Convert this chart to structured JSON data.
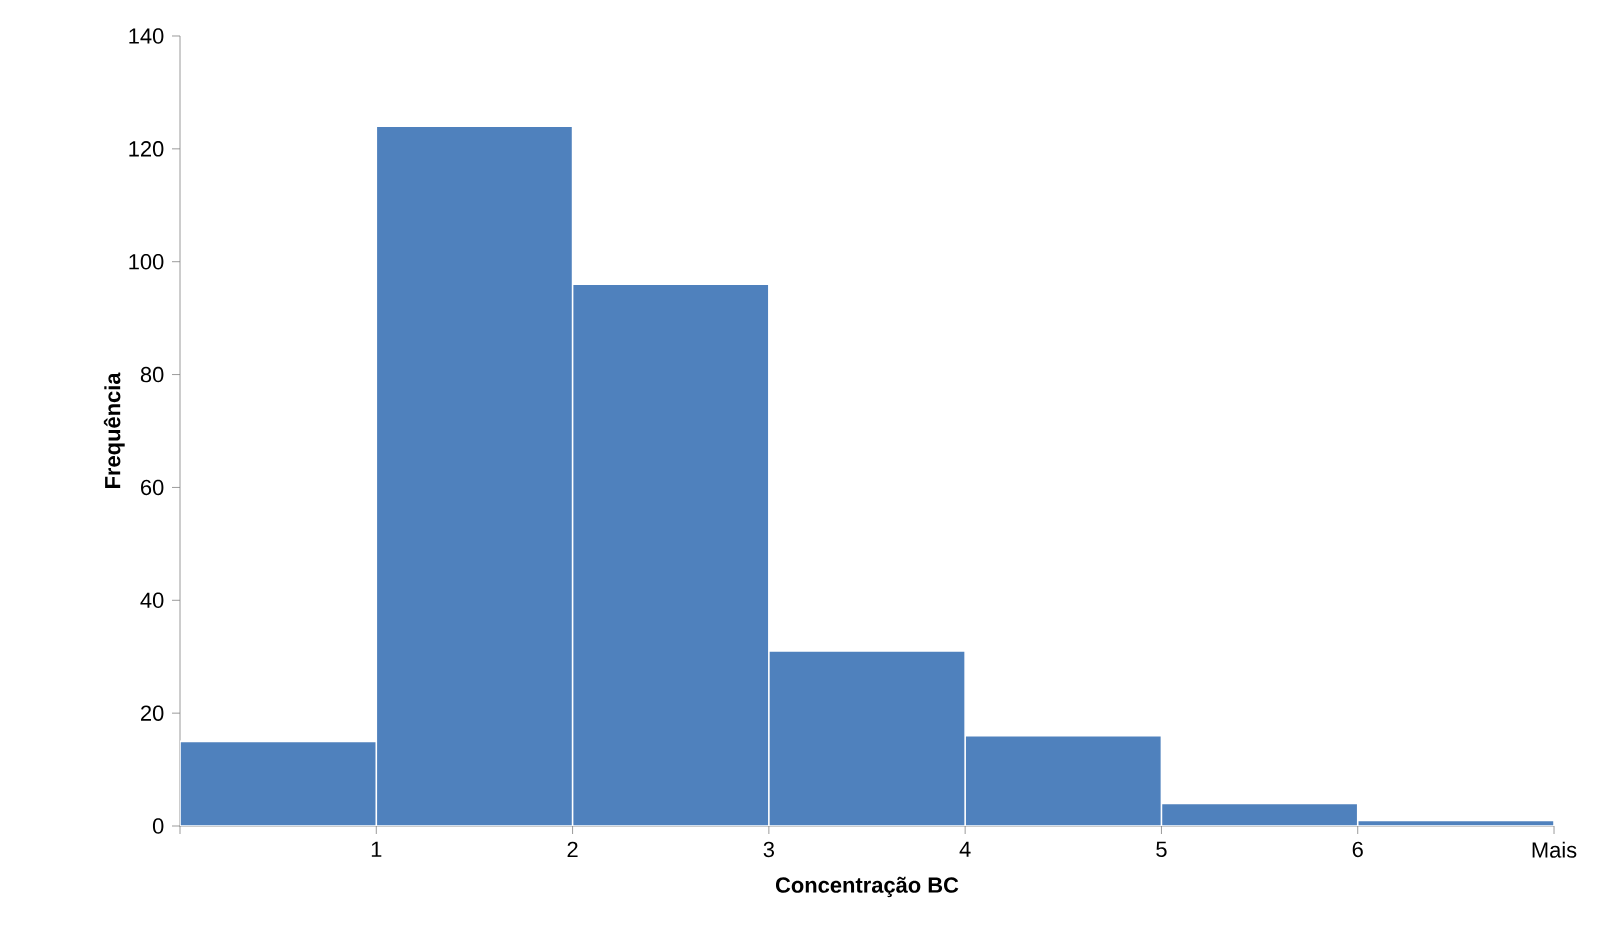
{
  "chart_data": {
    "type": "histogram",
    "xlabel": "Concentração  BC",
    "ylabel": "Frequência",
    "bins": [
      0,
      1,
      2,
      3,
      4,
      5,
      6,
      7
    ],
    "values": [
      15,
      124,
      96,
      31,
      16,
      4,
      1
    ],
    "color": "#4f81bd",
    "xlim": [
      0,
      7
    ],
    "xticks": [
      {
        "value": 0,
        "label": null
      },
      1,
      2,
      3,
      4,
      5,
      6,
      {
        "value": 7,
        "label": "Mais"
      }
    ],
    "ylim": [
      0,
      140
    ],
    "yticks": [
      0,
      20,
      40,
      60,
      80,
      100,
      120,
      140
    ]
  }
}
